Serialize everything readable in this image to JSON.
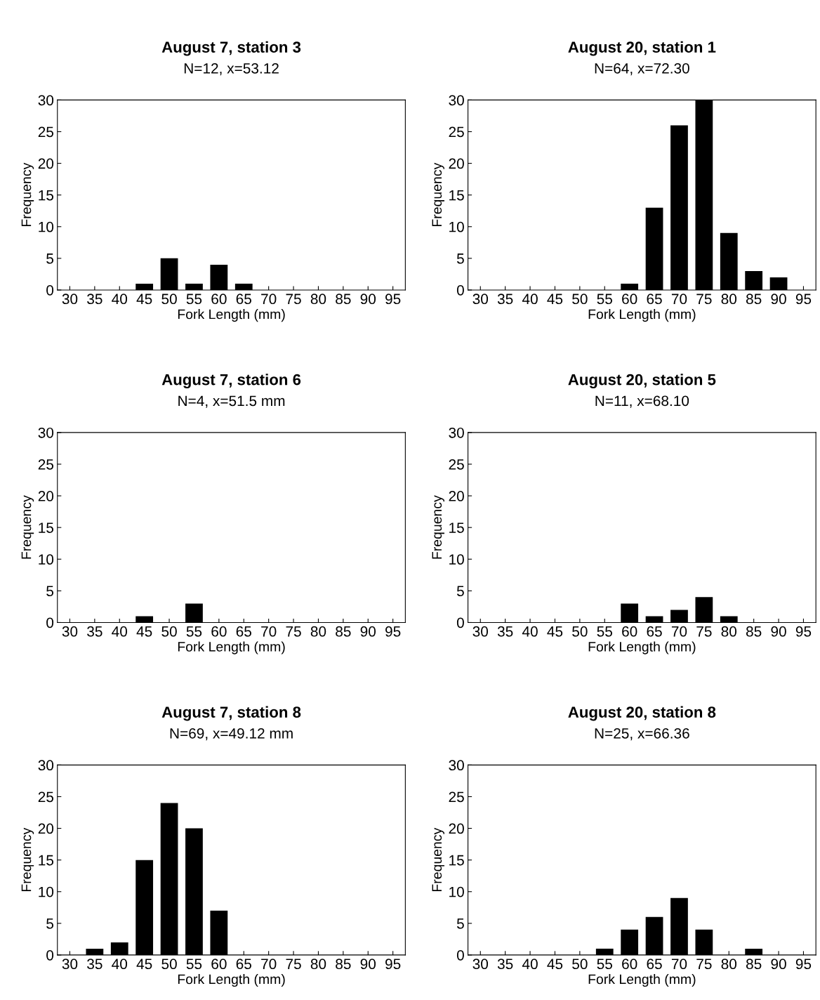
{
  "chart_data": [
    {
      "type": "bar",
      "title": "August 7, station 3",
      "subtitle": "N=12, x=53.12",
      "xlabel": "Fork Length (mm)",
      "ylabel": "Frequency",
      "categories": [
        "30",
        "35",
        "40",
        "45",
        "50",
        "55",
        "60",
        "65",
        "70",
        "75",
        "80",
        "85",
        "90",
        "95"
      ],
      "values": [
        0,
        0,
        0,
        1,
        5,
        1,
        4,
        1,
        0,
        0,
        0,
        0,
        0,
        0
      ],
      "color": "#000000",
      "ylim": [
        0,
        30
      ],
      "yticks": [
        0,
        5,
        10,
        15,
        20,
        25,
        30
      ]
    },
    {
      "type": "bar",
      "title": "August 20, station 1",
      "subtitle": "N=64, x=72.30",
      "xlabel": "Fork Length (mm)",
      "ylabel": "Frequency",
      "categories": [
        "30",
        "35",
        "40",
        "45",
        "50",
        "55",
        "60",
        "65",
        "70",
        "75",
        "80",
        "85",
        "90",
        "95"
      ],
      "values": [
        0,
        0,
        0,
        0,
        0,
        0,
        1,
        13,
        26,
        30,
        9,
        3,
        2,
        0
      ],
      "color": "#000000",
      "ylim": [
        0,
        30
      ],
      "yticks": [
        0,
        5,
        10,
        15,
        20,
        25,
        30
      ]
    },
    {
      "type": "bar",
      "title": "August 7, station 6",
      "subtitle": "N=4, x=51.5 mm",
      "xlabel": "Fork Length (mm)",
      "ylabel": "Frequency",
      "categories": [
        "30",
        "35",
        "40",
        "45",
        "50",
        "55",
        "60",
        "65",
        "70",
        "75",
        "80",
        "85",
        "90",
        "95"
      ],
      "values": [
        0,
        0,
        0,
        1,
        0,
        3,
        0,
        0,
        0,
        0,
        0,
        0,
        0,
        0
      ],
      "color": "#000000",
      "ylim": [
        0,
        30
      ],
      "yticks": [
        0,
        5,
        10,
        15,
        20,
        25,
        30
      ]
    },
    {
      "type": "bar",
      "title": "August 20, station 5",
      "subtitle": "N=11, x=68.10",
      "xlabel": "Fork Length (mm)",
      "ylabel": "Frequency",
      "categories": [
        "30",
        "35",
        "40",
        "45",
        "50",
        "55",
        "60",
        "65",
        "70",
        "75",
        "80",
        "85",
        "90",
        "95"
      ],
      "values": [
        0,
        0,
        0,
        0,
        0,
        0,
        3,
        1,
        2,
        4,
        1,
        0,
        0,
        0
      ],
      "color": "#000000",
      "ylim": [
        0,
        30
      ],
      "yticks": [
        0,
        5,
        10,
        15,
        20,
        25,
        30
      ]
    },
    {
      "type": "bar",
      "title": "August 7, station 8",
      "subtitle": "N=69, x=49.12 mm",
      "xlabel": "Fork Length (mm)",
      "ylabel": "Frequency",
      "categories": [
        "30",
        "35",
        "40",
        "45",
        "50",
        "55",
        "60",
        "65",
        "70",
        "75",
        "80",
        "85",
        "90",
        "95"
      ],
      "values": [
        0,
        1,
        2,
        15,
        24,
        20,
        7,
        0,
        0,
        0,
        0,
        0,
        0,
        0
      ],
      "color": "#000000",
      "ylim": [
        0,
        30
      ],
      "yticks": [
        0,
        5,
        10,
        15,
        20,
        25,
        30
      ]
    },
    {
      "type": "bar",
      "title": "August 20, station 8",
      "subtitle": "N=25, x=66.36",
      "xlabel": "Fork Length (mm)",
      "ylabel": "Frequency",
      "categories": [
        "30",
        "35",
        "40",
        "45",
        "50",
        "55",
        "60",
        "65",
        "70",
        "75",
        "80",
        "85",
        "90",
        "95"
      ],
      "values": [
        0,
        0,
        0,
        0,
        0,
        1,
        4,
        6,
        9,
        4,
        0,
        1,
        0,
        0
      ],
      "color": "#000000",
      "ylim": [
        0,
        30
      ],
      "yticks": [
        0,
        5,
        10,
        15,
        20,
        25,
        30
      ]
    }
  ]
}
